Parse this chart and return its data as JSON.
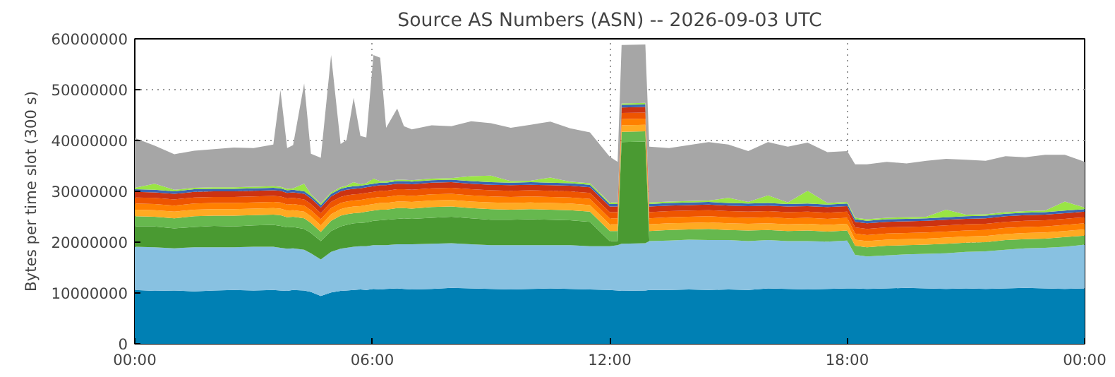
{
  "chart_data": {
    "type": "area",
    "stacked": true,
    "title": "Source AS Numbers (ASN) -- 2026-09-03 UTC",
    "ylabel": "Bytes per time slot (300 s)",
    "x": [
      0,
      0.5,
      1,
      1.5,
      2,
      2.5,
      3,
      3.5,
      3.68,
      3.85,
      4,
      4.28,
      4.45,
      4.7,
      4.96,
      5.2,
      5.35,
      5.53,
      5.7,
      5.85,
      6.03,
      6.2,
      6.35,
      6.63,
      6.8,
      7,
      7.5,
      8,
      8.5,
      9,
      9.5,
      10,
      10.5,
      11,
      11.5,
      12,
      12.2,
      12.3,
      12.9,
      13,
      13.5,
      14,
      14.5,
      15,
      15.5,
      16,
      16.5,
      17,
      17.5,
      18,
      18.2,
      18.5,
      19,
      19.5,
      20,
      20.5,
      21,
      21.5,
      22,
      22.5,
      23,
      23.5,
      24
    ],
    "xlim": [
      0,
      24
    ],
    "xticks": [
      {
        "value": 0,
        "label": "00:00"
      },
      {
        "value": 6,
        "label": "06:00"
      },
      {
        "value": 12,
        "label": "12:00"
      },
      {
        "value": 18,
        "label": "18:00"
      },
      {
        "value": 24,
        "label": "00:00"
      }
    ],
    "ylim": [
      0,
      60000000
    ],
    "yticks": [
      0,
      10000000,
      20000000,
      30000000,
      40000000,
      50000000,
      60000000
    ],
    "grid": true,
    "series": [
      {
        "color": "#0080b4",
        "values": [
          10600000,
          10400000,
          10500000,
          10300000,
          10500000,
          10600000,
          10500000,
          10600000,
          10500000,
          10400000,
          10600000,
          10500000,
          10200000,
          9400000,
          10100000,
          10400000,
          10500000,
          10600000,
          10700000,
          10600000,
          10800000,
          10700000,
          10800000,
          10900000,
          10800000,
          10700000,
          10800000,
          11000000,
          10900000,
          10800000,
          10700000,
          10800000,
          10900000,
          10800000,
          10700000,
          10600000,
          10500000,
          10400000,
          10500000,
          10600000,
          10600000,
          10700000,
          10600000,
          10700000,
          10600000,
          10900000,
          10800000,
          10700000,
          10800000,
          10900000,
          10900000,
          10800000,
          10900000,
          11000000,
          10900000,
          10800000,
          10900000,
          10800000,
          10900000,
          11000000,
          10900000,
          10800000,
          10900000
        ]
      },
      {
        "color": "#88c1e1",
        "values": [
          8500000,
          8600000,
          8300000,
          8700000,
          8500000,
          8400000,
          8600000,
          8500000,
          8400000,
          8300000,
          8200000,
          8000000,
          7600000,
          7200000,
          8000000,
          8300000,
          8400000,
          8500000,
          8500000,
          8600000,
          8600000,
          8700000,
          8600000,
          8700000,
          8800000,
          8900000,
          8900000,
          8800000,
          8700000,
          8600000,
          8700000,
          8600000,
          8500000,
          8600000,
          8500000,
          8600000,
          8900000,
          9300000,
          9300000,
          9600000,
          9700000,
          9800000,
          9800000,
          9700000,
          9600000,
          9500000,
          9400000,
          9500000,
          9300000,
          9400000,
          6600000,
          6400000,
          6500000,
          6600000,
          6800000,
          7000000,
          7200000,
          7400000,
          7600000,
          7800000,
          8000000,
          8300000,
          8600000
        ]
      },
      {
        "color": "#4a9a32",
        "values": [
          4000000,
          4100000,
          3900000,
          4000000,
          4200000,
          4100000,
          4200000,
          4300000,
          4300000,
          4200000,
          4200000,
          4100000,
          4000000,
          3600000,
          4100000,
          4400000,
          4500000,
          4600000,
          4600000,
          4700000,
          4800000,
          4900000,
          5000000,
          5000000,
          5100000,
          5000000,
          5100000,
          5200000,
          5100000,
          5000000,
          5000000,
          5100000,
          5000000,
          4900000,
          4800000,
          1000000,
          800000,
          20000000,
          20000000,
          0,
          0,
          0,
          0,
          0,
          0,
          0,
          0,
          0,
          0,
          0,
          0,
          0,
          0,
          0,
          0,
          0,
          0,
          0,
          0,
          0,
          0,
          0,
          0
        ]
      },
      {
        "color": "#66b84e",
        "values": [
          2000000,
          1900000,
          2000000,
          2100000,
          2000000,
          2100000,
          2000000,
          2000000,
          2100000,
          2000000,
          2000000,
          2100000,
          2000000,
          1800000,
          2000000,
          2100000,
          2100000,
          2000000,
          2000000,
          2100000,
          2000000,
          2100000,
          2000000,
          2100000,
          2000000,
          2000000,
          2100000,
          2000000,
          2000000,
          2100000,
          2000000,
          2000000,
          2000000,
          2000000,
          2000000,
          2000000,
          2000000,
          2000000,
          2000000,
          2000000,
          2100000,
          2000000,
          2200000,
          2000000,
          2100000,
          2000000,
          2000000,
          2100000,
          2000000,
          2000000,
          1800000,
          1800000,
          1900000,
          1800000,
          1800000,
          1900000,
          1800000,
          1800000,
          1900000,
          1800000,
          1800000,
          1900000,
          1800000
        ]
      },
      {
        "color": "#ffaa22",
        "values": [
          1300000,
          1300000,
          1300000,
          1300000,
          1300000,
          1300000,
          1300000,
          1300000,
          1300000,
          1300000,
          1300000,
          1300000,
          1300000,
          1300000,
          1300000,
          1300000,
          1300000,
          1300000,
          1300000,
          1300000,
          1300000,
          1300000,
          1300000,
          1300000,
          1300000,
          1300000,
          1300000,
          1300000,
          1300000,
          1300000,
          1300000,
          1300000,
          1300000,
          1300000,
          1300000,
          1300000,
          1300000,
          1300000,
          1300000,
          1300000,
          1300000,
          1300000,
          1300000,
          1300000,
          1300000,
          1300000,
          1300000,
          1300000,
          1300000,
          1300000,
          1200000,
          1200000,
          1200000,
          1200000,
          1200000,
          1200000,
          1200000,
          1200000,
          1200000,
          1200000,
          1200000,
          1200000,
          1200000
        ]
      },
      {
        "color": "#ff8000",
        "values": [
          1200000,
          1200000,
          1200000,
          1200000,
          1200000,
          1200000,
          1200000,
          1200000,
          1200000,
          1200000,
          1200000,
          1200000,
          1200000,
          1200000,
          1200000,
          1200000,
          1200000,
          1200000,
          1200000,
          1200000,
          1200000,
          1200000,
          1200000,
          1200000,
          1200000,
          1200000,
          1200000,
          1200000,
          1200000,
          1200000,
          1200000,
          1200000,
          1200000,
          1200000,
          1200000,
          1200000,
          1200000,
          1200000,
          1200000,
          1200000,
          1200000,
          1200000,
          1200000,
          1200000,
          1200000,
          1200000,
          1200000,
          1200000,
          1200000,
          1200000,
          1200000,
          1200000,
          1200000,
          1200000,
          1200000,
          1200000,
          1200000,
          1200000,
          1200000,
          1200000,
          1200000,
          1200000,
          1200000
        ]
      },
      {
        "color": "#ee5500",
        "values": [
          1200000,
          1200000,
          1200000,
          1200000,
          1200000,
          1200000,
          1200000,
          1200000,
          1200000,
          1200000,
          1200000,
          1200000,
          1200000,
          1200000,
          1200000,
          1200000,
          1200000,
          1200000,
          1200000,
          1200000,
          1200000,
          1200000,
          1200000,
          1200000,
          1200000,
          1200000,
          1200000,
          1200000,
          1200000,
          1200000,
          1200000,
          1200000,
          1200000,
          1200000,
          1200000,
          1200000,
          1200000,
          1200000,
          1200000,
          1200000,
          1200000,
          1200000,
          1200000,
          1200000,
          1200000,
          1200000,
          1200000,
          1200000,
          1200000,
          1200000,
          1200000,
          1200000,
          1200000,
          1200000,
          1200000,
          1200000,
          1200000,
          1200000,
          1200000,
          1200000,
          1200000,
          1200000,
          1200000
        ]
      },
      {
        "color": "#cc3311",
        "values": [
          1100000,
          1100000,
          1100000,
          1100000,
          1100000,
          1100000,
          1100000,
          1100000,
          1100000,
          1100000,
          1100000,
          1100000,
          1100000,
          1100000,
          1100000,
          1100000,
          1100000,
          1100000,
          1100000,
          1100000,
          1100000,
          1100000,
          1100000,
          1100000,
          1100000,
          1100000,
          1100000,
          1100000,
          1100000,
          1100000,
          1100000,
          1100000,
          1100000,
          1100000,
          1100000,
          1100000,
          1100000,
          1100000,
          1100000,
          1100000,
          1100000,
          1100000,
          1100000,
          1100000,
          1100000,
          1100000,
          1100000,
          1100000,
          1100000,
          1100000,
          1100000,
          1100000,
          1100000,
          1100000,
          1100000,
          1100000,
          1100000,
          1100000,
          1100000,
          1100000,
          1100000,
          1100000,
          1100000
        ]
      },
      {
        "color": "#3a66b3",
        "values": [
          500000,
          500000,
          500000,
          500000,
          500000,
          500000,
          500000,
          500000,
          500000,
          500000,
          500000,
          500000,
          500000,
          500000,
          500000,
          500000,
          500000,
          500000,
          500000,
          500000,
          500000,
          500000,
          500000,
          500000,
          500000,
          500000,
          500000,
          500000,
          500000,
          500000,
          500000,
          500000,
          500000,
          500000,
          500000,
          500000,
          500000,
          500000,
          500000,
          500000,
          500000,
          500000,
          500000,
          500000,
          500000,
          500000,
          500000,
          500000,
          500000,
          500000,
          500000,
          500000,
          500000,
          500000,
          500000,
          500000,
          500000,
          500000,
          500000,
          500000,
          500000,
          500000,
          500000
        ]
      },
      {
        "color": "#99e544",
        "values": [
          300000,
          1200000,
          300000,
          300000,
          300000,
          300000,
          300000,
          300000,
          300000,
          300000,
          300000,
          1500000,
          300000,
          300000,
          300000,
          300000,
          300000,
          800000,
          300000,
          300000,
          1000000,
          300000,
          300000,
          300000,
          300000,
          300000,
          300000,
          300000,
          1000000,
          1300000,
          300000,
          300000,
          1000000,
          300000,
          300000,
          300000,
          300000,
          300000,
          300000,
          300000,
          300000,
          300000,
          300000,
          1000000,
          300000,
          1500000,
          300000,
          2500000,
          300000,
          300000,
          300000,
          300000,
          300000,
          300000,
          300000,
          1500000,
          300000,
          300000,
          300000,
          300000,
          300000,
          1800000,
          300000
        ]
      },
      {
        "color": "#a6a6a6",
        "values": [
          9800000,
          7500000,
          7000000,
          7300000,
          7500000,
          7800000,
          7600000,
          8200000,
          19000000,
          8000000,
          8500000,
          19700000,
          8000000,
          9000000,
          27000000,
          8500000,
          9000000,
          16600000,
          9500000,
          9000000,
          24300000,
          24300000,
          10500000,
          14000000,
          10500000,
          10000000,
          10500000,
          10200000,
          10800000,
          10300000,
          10500000,
          11000000,
          11000000,
          10500000,
          10000000,
          9000000,
          8000000,
          11500000,
          11500000,
          11000000,
          10500000,
          11000000,
          11500000,
          10500000,
          10000000,
          10500000,
          11000000,
          9500000,
          10000000,
          10000000,
          10500000,
          10800000,
          11000000,
          10600000,
          11000000,
          10000000,
          10800000,
          10500000,
          11000000,
          10600000,
          11000000,
          9200000,
          9000000
        ]
      }
    ]
  }
}
